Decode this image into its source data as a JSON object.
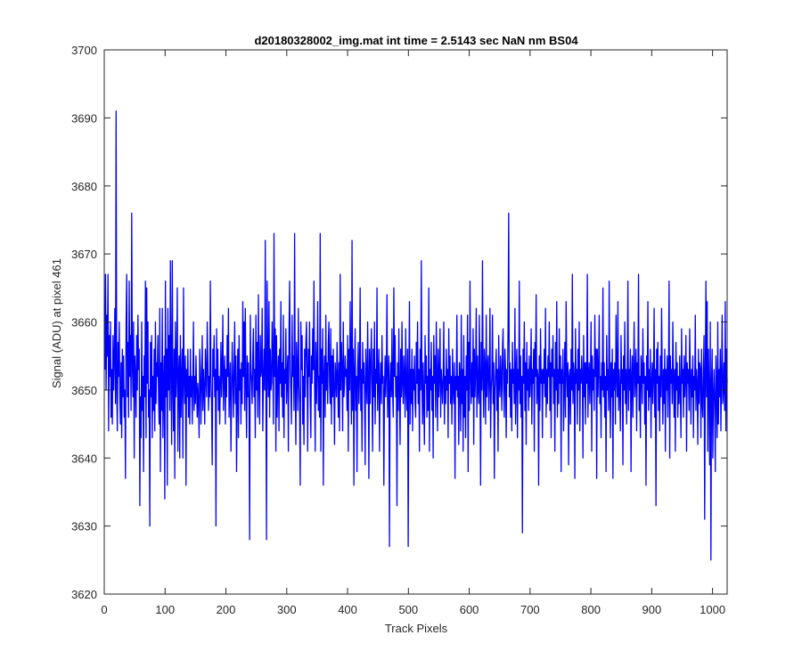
{
  "chart_data": {
    "type": "line",
    "title": "d20180328002_img.mat int time = 2.5143 sec  NaN nm BS04",
    "xlabel": "Track Pixels",
    "ylabel": "Signal (ADU) at pixel 461",
    "xlim": [
      0,
      1024
    ],
    "ylim": [
      3620,
      3700
    ],
    "xticks": [
      0,
      100,
      200,
      300,
      400,
      500,
      600,
      700,
      800,
      900,
      1000
    ],
    "yticks": [
      3620,
      3630,
      3640,
      3650,
      3660,
      3670,
      3680,
      3690,
      3700
    ],
    "grid": false,
    "series": [
      {
        "color": "#0000ff",
        "x_start": 1,
        "x_end": 1024,
        "values": [
          3653,
          3667,
          3650,
          3661,
          3655,
          3667,
          3644,
          3658,
          3652,
          3660,
          3646,
          3653,
          3645,
          3658,
          3650,
          3655,
          3662,
          3648,
          3691,
          3650,
          3644,
          3657,
          3652,
          3660,
          3649,
          3645,
          3654,
          3643,
          3656,
          3649,
          3655,
          3646,
          3650,
          3637,
          3660,
          3667,
          3649,
          3657,
          3646,
          3666,
          3652,
          3658,
          3647,
          3676,
          3654,
          3649,
          3660,
          3640,
          3655,
          3652,
          3646,
          3658,
          3650,
          3661,
          3653,
          3656,
          3633,
          3649,
          3643,
          3660,
          3647,
          3652,
          3638,
          3655,
          3649,
          3666,
          3643,
          3665,
          3651,
          3660,
          3646,
          3650,
          3630,
          3657,
          3649,
          3658,
          3643,
          3652,
          3647,
          3656,
          3644,
          3660,
          3648,
          3654,
          3652,
          3658,
          3649,
          3645,
          3662,
          3638,
          3654,
          3647,
          3662,
          3643,
          3651,
          3655,
          3634,
          3666,
          3649,
          3656,
          3636,
          3662,
          3650,
          3658,
          3647,
          3669,
          3653,
          3642,
          3669,
          3651,
          3644,
          3656,
          3637,
          3660,
          3649,
          3653,
          3665,
          3641,
          3652,
          3655,
          3640,
          3658,
          3646,
          3652,
          3656,
          3640,
          3665,
          3652,
          3648,
          3655,
          3636,
          3653,
          3649,
          3656,
          3646,
          3652,
          3645,
          3656,
          3649,
          3652,
          3645,
          3651,
          3660,
          3647,
          3652,
          3648,
          3655,
          3650,
          3646,
          3651,
          3648,
          3643,
          3656,
          3653,
          3645,
          3651,
          3658,
          3647,
          3653,
          3650,
          3645,
          3656,
          3652,
          3649,
          3660,
          3654,
          3647,
          3652,
          3649,
          3666,
          3652,
          3648,
          3639,
          3656,
          3652,
          3658,
          3649,
          3653,
          3630,
          3659,
          3650,
          3656,
          3647,
          3652,
          3645,
          3651,
          3657,
          3649,
          3653,
          3661,
          3647,
          3652,
          3655,
          3645,
          3653,
          3649,
          3658,
          3652,
          3662,
          3646,
          3651,
          3654,
          3641,
          3649,
          3657,
          3652,
          3646,
          3653,
          3660,
          3648,
          3655,
          3638,
          3649,
          3656,
          3643,
          3658,
          3650,
          3653,
          3645,
          3654,
          3648,
          3663,
          3652,
          3660,
          3647,
          3662,
          3651,
          3643,
          3655,
          3649,
          3654,
          3647,
          3628,
          3661,
          3653,
          3651,
          3648,
          3655,
          3659,
          3649,
          3653,
          3643,
          3661,
          3650,
          3657,
          3646,
          3664,
          3651,
          3645,
          3658,
          3652,
          3653,
          3662,
          3644,
          3651,
          3656,
          3650,
          3672,
          3652,
          3628,
          3666,
          3654,
          3649,
          3663,
          3646,
          3656,
          3650,
          3651,
          3660,
          3654,
          3645,
          3673,
          3652,
          3659,
          3641,
          3658,
          3646,
          3652,
          3655,
          3644,
          3656,
          3651,
          3663,
          3649,
          3654,
          3646,
          3661,
          3643,
          3653,
          3651,
          3659,
          3648,
          3652,
          3655,
          3641,
          3658,
          3666,
          3653,
          3650,
          3645,
          3661,
          3652,
          3655,
          3647,
          3673,
          3651,
          3642,
          3657,
          3653,
          3647,
          3662,
          3651,
          3648,
          3636,
          3660,
          3653,
          3658,
          3645,
          3652,
          3642,
          3656,
          3649,
          3657,
          3660,
          3653,
          3641,
          3656,
          3652,
          3660,
          3649,
          3643,
          3655,
          3651,
          3659,
          3653,
          3666,
          3651,
          3641,
          3657,
          3648,
          3653,
          3663,
          3647,
          3652,
          3646,
          3673,
          3641,
          3656,
          3651,
          3659,
          3636,
          3652,
          3655,
          3646,
          3661,
          3650,
          3654,
          3648,
          3657,
          3660,
          3651,
          3648,
          3659,
          3645,
          3655,
          3649,
          3656,
          3650,
          3642,
          3654,
          3652,
          3649,
          3657,
          3652,
          3646,
          3654,
          3644,
          3667,
          3650,
          3657,
          3653,
          3644,
          3660,
          3649,
          3651,
          3655,
          3652,
          3653,
          3647,
          3658,
          3641,
          3656,
          3650,
          3663,
          3653,
          3645,
          3672,
          3647,
          3656,
          3636,
          3653,
          3659,
          3647,
          3652,
          3638,
          3653,
          3657,
          3648,
          3652,
          3665,
          3647,
          3653,
          3641,
          3657,
          3651,
          3654,
          3650,
          3639,
          3656,
          3652,
          3648,
          3660,
          3652,
          3637,
          3656,
          3648,
          3654,
          3659,
          3650,
          3641,
          3656,
          3649,
          3660,
          3645,
          3653,
          3651,
          3665,
          3647,
          3652,
          3656,
          3641,
          3651,
          3654,
          3648,
          3658,
          3651,
          3652,
          3636,
          3650,
          3655,
          3649,
          3653,
          3664,
          3646,
          3652,
          3655,
          3627,
          3651,
          3654,
          3649,
          3659,
          3650,
          3646,
          3665,
          3652,
          3658,
          3649,
          3652,
          3633,
          3654,
          3647,
          3659,
          3650,
          3642,
          3656,
          3649,
          3660,
          3651,
          3648,
          3655,
          3652,
          3646,
          3659,
          3650,
          3647,
          3656,
          3627,
          3652,
          3663,
          3645,
          3653,
          3648,
          3656,
          3644,
          3653,
          3650,
          3655,
          3648,
          3646,
          3657,
          3651,
          3660,
          3648,
          3653,
          3641,
          3656,
          3650,
          3669,
          3651,
          3645,
          3654,
          3648,
          3642,
          3658,
          3651,
          3655,
          3646,
          3652,
          3647,
          3665,
          3641,
          3653,
          3650,
          3657,
          3647,
          3652,
          3640,
          3658,
          3651,
          3655,
          3646,
          3660,
          3652,
          3644,
          3656,
          3649,
          3652,
          3659,
          3646,
          3653,
          3651,
          3648,
          3652,
          3660,
          3645,
          3652,
          3648,
          3656,
          3650,
          3653,
          3643,
          3659,
          3651,
          3655,
          3648,
          3652,
          3645,
          3656,
          3650,
          3648,
          3654,
          3637,
          3652,
          3650,
          3661,
          3649,
          3652,
          3642,
          3654,
          3652,
          3644,
          3661,
          3648,
          3653,
          3641,
          3658,
          3646,
          3652,
          3643,
          3655,
          3650,
          3661,
          3638,
          3657,
          3647,
          3666,
          3652,
          3648,
          3654,
          3649,
          3659,
          3642,
          3656,
          3649,
          3653,
          3662,
          3646,
          3655,
          3650,
          3648,
          3661,
          3652,
          3636,
          3657,
          3650,
          3669,
          3652,
          3646,
          3656,
          3653,
          3645,
          3661,
          3649,
          3653,
          3655,
          3647,
          3652,
          3662,
          3643,
          3650,
          3652,
          3661,
          3648,
          3654,
          3637,
          3650,
          3653,
          3656,
          3647,
          3653,
          3641,
          3658,
          3651,
          3649,
          3655,
          3652,
          3647,
          3656,
          3659,
          3650,
          3646,
          3656,
          3653,
          3643,
          3653,
          3651,
          3659,
          3676,
          3649,
          3654,
          3646,
          3653,
          3644,
          3657,
          3651,
          3653,
          3648,
          3662,
          3645,
          3653,
          3656,
          3643,
          3653,
          3650,
          3666,
          3648,
          3655,
          3646,
          3652,
          3629,
          3656,
          3651,
          3660,
          3647,
          3654,
          3642,
          3657,
          3650,
          3653,
          3647,
          3655,
          3649,
          3652,
          3659,
          3645,
          3653,
          3651,
          3656,
          3641,
          3657,
          3652,
          3664,
          3648,
          3653,
          3652,
          3636,
          3655,
          3647,
          3659,
          3651,
          3653,
          3643,
          3653,
          3651,
          3656,
          3649,
          3662,
          3646,
          3653,
          3648,
          3655,
          3652,
          3660,
          3647,
          3654,
          3643,
          3656,
          3652,
          3658,
          3648,
          3653,
          3641,
          3657,
          3650,
          3663,
          3646,
          3653,
          3648,
          3659,
          3651,
          3655,
          3638,
          3653,
          3651,
          3656,
          3644,
          3650,
          3657,
          3646,
          3663,
          3653,
          3649,
          3654,
          3639,
          3652,
          3653,
          3645,
          3656,
          3650,
          3667,
          3648,
          3654,
          3652,
          3637,
          3659,
          3651,
          3653,
          3645,
          3656,
          3650,
          3660,
          3644,
          3653,
          3651,
          3655,
          3652,
          3640,
          3658,
          3649,
          3654,
          3645,
          3654,
          3651,
          3667,
          3646,
          3652,
          3654,
          3648,
          3652,
          3660,
          3641,
          3655,
          3650,
          3653,
          3647,
          3661,
          3652,
          3656,
          3637,
          3656,
          3649,
          3653,
          3661,
          3648,
          3652,
          3643,
          3654,
          3650,
          3665,
          3649,
          3654,
          3646,
          3652,
          3638,
          3658,
          3650,
          3653,
          3647,
          3666,
          3651,
          3643,
          3654,
          3649,
          3656,
          3637,
          3653,
          3650,
          3654,
          3645,
          3661,
          3652,
          3649,
          3663,
          3647,
          3653,
          3650,
          3644,
          3658,
          3651,
          3653,
          3639,
          3655,
          3650,
          3660,
          3648,
          3653,
          3645,
          3652,
          3666,
          3647,
          3653,
          3650,
          3656,
          3638,
          3652,
          3655,
          3646,
          3653,
          3660,
          3649,
          3652,
          3656,
          3644,
          3654,
          3651,
          3667,
          3647,
          3652,
          3643,
          3655,
          3653,
          3648,
          3659,
          3651,
          3654,
          3645,
          3652,
          3636,
          3655,
          3650,
          3663,
          3647,
          3653,
          3649,
          3656,
          3643,
          3651,
          3654,
          3648,
          3652,
          3662,
          3646,
          3653,
          3633,
          3656,
          3651,
          3657,
          3647,
          3652,
          3644,
          3655,
          3649,
          3662,
          3652,
          3645,
          3653,
          3648,
          3656,
          3641,
          3653,
          3650,
          3655,
          3646,
          3652,
          3666,
          3640,
          3655,
          3651,
          3653,
          3648,
          3660,
          3652,
          3646,
          3653,
          3641,
          3657,
          3650,
          3654,
          3646,
          3652,
          3648,
          3655,
          3650,
          3643,
          3659,
          3651,
          3653,
          3646,
          3655,
          3649,
          3652,
          3658,
          3641,
          3654,
          3651,
          3653,
          3647,
          3659,
          3652,
          3645,
          3653,
          3649,
          3655,
          3643,
          3652,
          3650,
          3661,
          3647,
          3653,
          3651,
          3642,
          3656,
          3648,
          3654,
          3653,
          3643,
          3656,
          3648,
          3646,
          3653,
          3658,
          3631,
          3652,
          3666,
          3649,
          3663,
          3641,
          3656,
          3650,
          3639,
          3660,
          3625,
          3651,
          3656,
          3640,
          3649,
          3653,
          3648,
          3638,
          3655,
          3651,
          3643,
          3660,
          3645,
          3653,
          3649,
          3656,
          3644,
          3652,
          3661,
          3648,
          3650,
          3654,
          3647,
          3663,
          3644,
          3656,
          3651
        ]
      }
    ]
  }
}
